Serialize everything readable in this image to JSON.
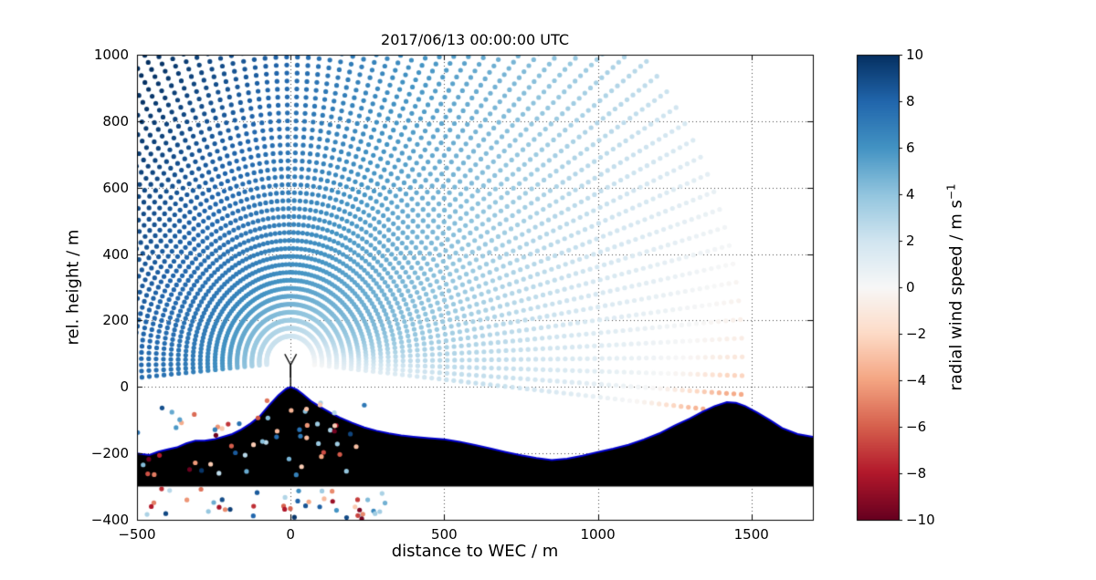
{
  "chart_data": {
    "type": "scatter",
    "title": "2017/06/13 00:00:00 UTC",
    "xlabel": "distance to WEC / m",
    "ylabel": "rel. height / m",
    "xlim": [
      -500,
      1700
    ],
    "ylim": [
      -400,
      1000
    ],
    "x_ticks": [
      -500,
      0,
      500,
      1000,
      1500
    ],
    "x_tick_labels": [
      "−500",
      "0",
      "500",
      "1000",
      "1500"
    ],
    "y_ticks": [
      -400,
      -200,
      0,
      200,
      400,
      600,
      800,
      1000
    ],
    "y_tick_labels": [
      "−400",
      "−200",
      "0",
      "200",
      "400",
      "600",
      "800",
      "1000"
    ],
    "grid_style": "dotted",
    "colorbar": {
      "label": "radial wind speed / m s⁻¹",
      "label_main": "radial wind speed / m s",
      "label_sup": "−1",
      "range": [
        -10,
        10
      ],
      "ticks": [
        -10,
        -8,
        -6,
        -4,
        -2,
        0,
        2,
        4,
        6,
        8,
        10
      ],
      "tick_labels": [
        "−10",
        "−8",
        "−6",
        "−4",
        "−2",
        "0",
        "2",
        "4",
        "6",
        "8",
        "10"
      ],
      "cmap": "RdBu",
      "cmap_stops": [
        "#67001f",
        "#b2182b",
        "#d6604d",
        "#f4a582",
        "#fddbc7",
        "#f7f7f7",
        "#d1e5f0",
        "#92c5de",
        "#4393c3",
        "#2166ac",
        "#053061"
      ]
    },
    "scan": {
      "description": "lidar RHI fan scan of range gates, colored by radial wind speed",
      "origin": [
        0,
        75
      ],
      "el_start": -6,
      "el_end": 186,
      "el_step": 2.2,
      "r_start": 78,
      "r_end": 1480,
      "r_step": 24,
      "dot_radius": 2.6
    },
    "wind_model": {
      "v0": 5.5,
      "x_coef": -0.0045,
      "z_coef": 0.0025,
      "near_amp": 4.5,
      "near_scale": 160,
      "wake_amp": 3.2,
      "wake_x": 230,
      "wake_sx": 260,
      "wake_z": 15,
      "wake_sz": 95,
      "sfc_amp": 3.0,
      "sfc_scale": 90,
      "sfc_x_onset": 150,
      "sfc_x_width": 120
    },
    "terrain": {
      "fill_color": "#000000",
      "outline_color": "#0000cd",
      "base_level": -300,
      "profile": [
        [
          -500,
          -200
        ],
        [
          -460,
          -205
        ],
        [
          -430,
          -195
        ],
        [
          -400,
          -188
        ],
        [
          -370,
          -182
        ],
        [
          -340,
          -170
        ],
        [
          -310,
          -162
        ],
        [
          -280,
          -162
        ],
        [
          -250,
          -158
        ],
        [
          -220,
          -150
        ],
        [
          -190,
          -142
        ],
        [
          -160,
          -128
        ],
        [
          -130,
          -110
        ],
        [
          -100,
          -88
        ],
        [
          -70,
          -55
        ],
        [
          -40,
          -25
        ],
        [
          -15,
          -6
        ],
        [
          0,
          0
        ],
        [
          20,
          -8
        ],
        [
          40,
          -22
        ],
        [
          70,
          -45
        ],
        [
          100,
          -62
        ],
        [
          130,
          -78
        ],
        [
          160,
          -92
        ],
        [
          200,
          -108
        ],
        [
          240,
          -122
        ],
        [
          280,
          -132
        ],
        [
          320,
          -140
        ],
        [
          360,
          -146
        ],
        [
          400,
          -150
        ],
        [
          450,
          -154
        ],
        [
          500,
          -158
        ],
        [
          550,
          -165
        ],
        [
          600,
          -175
        ],
        [
          650,
          -185
        ],
        [
          700,
          -196
        ],
        [
          750,
          -206
        ],
        [
          800,
          -214
        ],
        [
          850,
          -220
        ],
        [
          900,
          -216
        ],
        [
          950,
          -207
        ],
        [
          1000,
          -196
        ],
        [
          1050,
          -186
        ],
        [
          1100,
          -174
        ],
        [
          1150,
          -158
        ],
        [
          1200,
          -140
        ],
        [
          1250,
          -116
        ],
        [
          1300,
          -95
        ],
        [
          1340,
          -75
        ],
        [
          1380,
          -58
        ],
        [
          1420,
          -46
        ],
        [
          1450,
          -48
        ],
        [
          1480,
          -58
        ],
        [
          1520,
          -78
        ],
        [
          1560,
          -100
        ],
        [
          1600,
          -124
        ],
        [
          1650,
          -142
        ],
        [
          1700,
          -150
        ]
      ]
    },
    "turbine": {
      "x": 0,
      "base_y": 0,
      "hub_y": 66,
      "blade_length": 38,
      "blade_angles": [
        60,
        120,
        270
      ],
      "color": "#000000"
    },
    "noise": {
      "seed": 42,
      "dot_radius": 2.6,
      "on_terrain": {
        "count": 62,
        "x": [
          -500,
          280
        ],
        "y": [
          -270,
          -40
        ]
      },
      "below": {
        "count": 46,
        "x": [
          -500,
          330
        ],
        "y": [
          -398,
          -305
        ]
      }
    }
  }
}
